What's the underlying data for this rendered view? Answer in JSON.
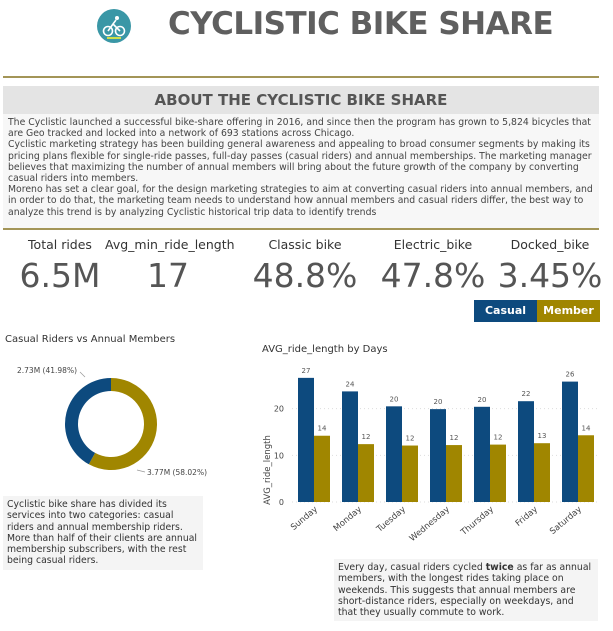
{
  "header": {
    "title": "CYCLISTIC BIKE SHARE",
    "logo_text": "Cyclistic"
  },
  "about": {
    "heading": "ABOUT THE CYCLISTIC BIKE SHARE",
    "paragraphs": [
      "The Cyclistic launched a successful bike-share offering in 2016, and since then the program has grown to 5,824 bicycles that are Geo tracked and locked into a network of 693 stations across Chicago.",
      "Cyclistic marketing strategy has been building general awareness and appealing to broad consumer segments by making its pricing plans flexible for single-ride passes, full-day passes (casual riders) and annual memberships. The marketing manager believes that maximizing the number of annual members will bring about the future growth of the company by converting casual riders into members.",
      "Moreno has set a clear goal, for the design marketing strategies to aim at converting casual riders into annual members, and in order to do that, the marketing team needs to understand how annual members and casual riders differ, the best way to analyze this trend is by analyzing Cyclistic historical trip data to identify trends"
    ]
  },
  "kpis": [
    {
      "label": "Total rides",
      "value": "6.5M"
    },
    {
      "label": "Avg_min_ride_length",
      "value": "17"
    },
    {
      "label": "Classic bike",
      "value": "48.8%"
    },
    {
      "label": "Electric_bike",
      "value": "47.8%"
    },
    {
      "label": "Docked_bike",
      "value": "3.45%"
    }
  ],
  "legend": {
    "casual": "Casual",
    "member": "Member"
  },
  "colors": {
    "casual": "#0d4a7e",
    "member": "#a08600",
    "accent": "#a39557"
  },
  "chart_data": [
    {
      "type": "pie",
      "title": "Casual Riders vs Annual Members",
      "slices": [
        {
          "name": "Casual",
          "value": 2.73,
          "label": "2.73M (41.98%)",
          "percent": 41.98
        },
        {
          "name": "Member",
          "value": 3.77,
          "label": "3.77M (58.02%)",
          "percent": 58.02
        }
      ]
    },
    {
      "type": "bar",
      "title": "AVG_ride_length by Days",
      "xlabel": "",
      "ylabel": "AVG_ride_length",
      "ylim": [
        0,
        30
      ],
      "yticks": [
        "0",
        "10",
        "20"
      ],
      "categories": [
        "Sunday",
        "Monday",
        "Tuesday",
        "Wednesday",
        "Thursday",
        "Friday",
        "Saturday"
      ],
      "series": [
        {
          "name": "Casual",
          "values": [
            26.6,
            23.7,
            20.5,
            19.9,
            20.4,
            21.6,
            25.8
          ],
          "labels": [
            "27",
            "24",
            "20",
            "20",
            "20",
            "22",
            "26"
          ]
        },
        {
          "name": "Member",
          "values": [
            14.2,
            12.4,
            12.1,
            12.2,
            12.3,
            12.6,
            14.3
          ],
          "labels": [
            "14",
            "12",
            "12",
            "12",
            "12",
            "13",
            "14"
          ]
        }
      ]
    }
  ],
  "notes": {
    "pie": "Cyclistic bike share has divided its services into two categories: casual riders and annual membership riders.\nMore than half of their clients are annual membership subscribers, with the rest being casual riders.",
    "bar_pre": "Every day, casual riders cycled ",
    "bar_bold": "twice",
    "bar_post": " as far as annual members, with the longest rides taking place on weekends. This suggests that annual members are short-distance riders, especially on weekdays, and that they usually commute to work."
  }
}
